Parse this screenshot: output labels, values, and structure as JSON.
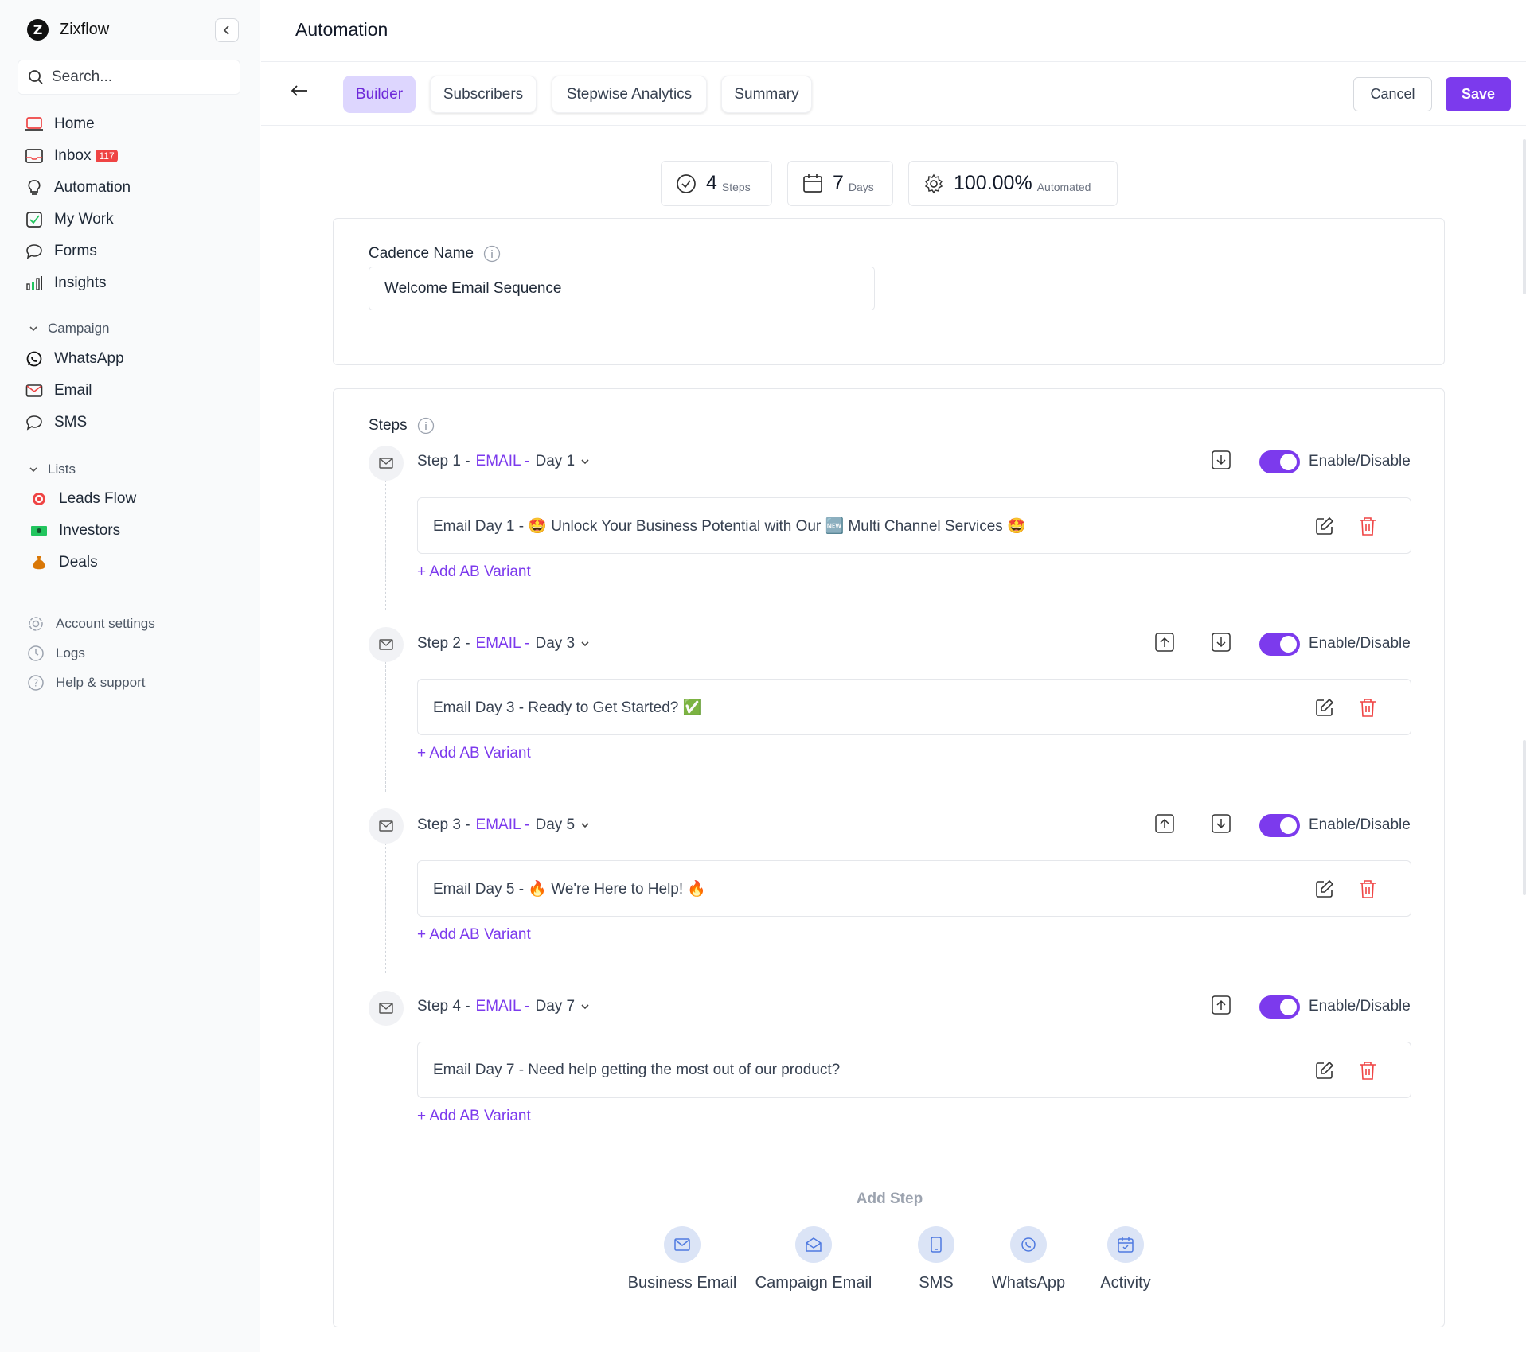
{
  "app": {
    "name": "Zixflow",
    "logo_letter": "Z"
  },
  "search": {
    "placeholder": "Search..."
  },
  "nav": {
    "home": "Home",
    "inbox": "Inbox",
    "inbox_count": "117",
    "automation": "Automation",
    "my_work": "My Work",
    "forms": "Forms",
    "insights": "Insights"
  },
  "campaign": {
    "heading": "Campaign",
    "whatsapp": "WhatsApp",
    "email": "Email",
    "sms": "SMS"
  },
  "lists": {
    "heading": "Lists",
    "leads_flow": "Leads Flow",
    "investors": "Investors",
    "deals": "Deals"
  },
  "bottom_nav": {
    "account_settings": "Account settings",
    "logs": "Logs",
    "help": "Help & support"
  },
  "header": {
    "title": "Automation"
  },
  "tabs": {
    "builder": "Builder",
    "subscribers": "Subscribers",
    "analytics": "Stepwise Analytics",
    "summary": "Summary"
  },
  "actions": {
    "cancel": "Cancel",
    "save": "Save"
  },
  "stats": {
    "steps_value": "4",
    "steps_unit": "Steps",
    "days_value": "7",
    "days_unit": "Days",
    "automated_value": "100.00%",
    "automated_unit": "Automated"
  },
  "cadence": {
    "label": "Cadence Name",
    "value": "Welcome Email Sequence"
  },
  "steps_label": "Steps",
  "toggle_label": "Enable/Disable",
  "add_ab": "+ Add AB Variant",
  "steps": [
    {
      "step": "Step 1 -",
      "channel": "EMAIL -",
      "day": "Day 1",
      "subject": "Email Day 1 - 🤩 Unlock Your Business Potential with Our 🆕 Multi Channel Services 🤩"
    },
    {
      "step": "Step 2 -",
      "channel": "EMAIL -",
      "day": "Day 3",
      "subject": "Email Day 3 - Ready to Get Started? ✅"
    },
    {
      "step": "Step 3 -",
      "channel": "EMAIL -",
      "day": "Day 5",
      "subject": "Email Day 5 - 🔥 We're Here to Help! 🔥"
    },
    {
      "step": "Step 4 -",
      "channel": "EMAIL -",
      "day": "Day 7",
      "subject": "Email Day 7 - Need help getting the most out of our product?"
    }
  ],
  "add_step": {
    "title": "Add Step",
    "business_email": "Business Email",
    "campaign_email": "Campaign Email",
    "sms": "SMS",
    "whatsapp": "WhatsApp",
    "activity": "Activity"
  },
  "colors": {
    "accent": "#7c3aed",
    "accent_soft": "#ddd6fe",
    "danger": "#ef4444"
  }
}
